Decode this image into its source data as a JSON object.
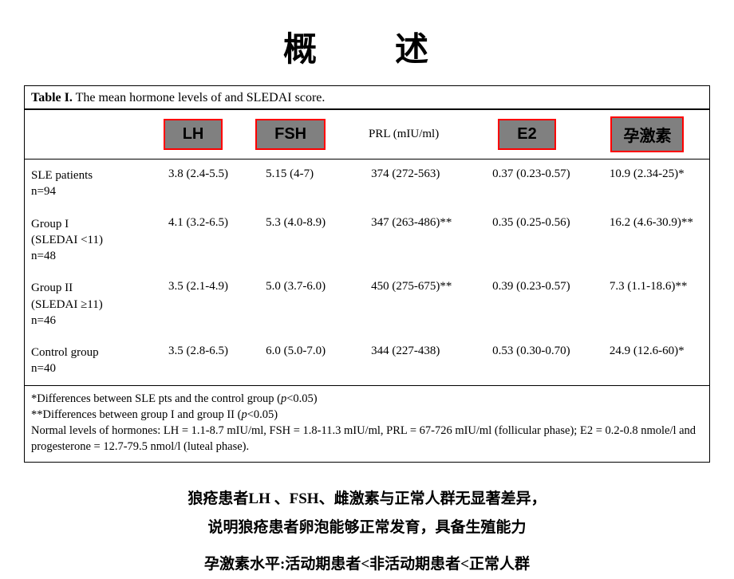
{
  "title": "概　述",
  "table": {
    "caption_prefix": "Table I.",
    "caption_text": " The mean hormone levels of and SLEDAI score.",
    "headers": {
      "lh": "LH",
      "fsh": "FSH",
      "prl": "PRL (mIU/ml)",
      "e2": "E2",
      "prog": "孕激素"
    },
    "rows": [
      {
        "label": "SLE patients\nn=94",
        "lh": "3.8  (2.4-5.5)",
        "fsh": "5.15  (4-7)",
        "prl": "374  (272-563)",
        "e2": "0.37  (0.23-0.57)",
        "prog": "10.9  (2.34-25)*"
      },
      {
        "label": "Group I\n(SLEDAI <11)\nn=48",
        "lh": "4.1  (3.2-6.5)",
        "fsh": "5.3  (4.0-8.9)",
        "prl": "347  (263-486)**",
        "e2": "0.35  (0.25-0.56)",
        "prog": "16.2  (4.6-30.9)**"
      },
      {
        "label": "Group II\n(SLEDAI ≥11)\nn=46",
        "lh": "3.5  (2.1-4.9)",
        "fsh": "5.0  (3.7-6.0)",
        "prl": "450  (275-675)**",
        "e2": "0.39  (0.23-0.57)",
        "prog": "7.3  (1.1-18.6)**"
      },
      {
        "label": "Control group\nn=40",
        "lh": "3.5  (2.8-6.5)",
        "fsh": "6.0  (5.0-7.0)",
        "prl": "344  (227-438)",
        "e2": "0.53  (0.30-0.70)",
        "prog": "24.9  (12.6-60)*"
      }
    ],
    "footnotes": {
      "f1_pre": "*Differences between SLE pts and the control group (",
      "f1_p": "p",
      "f1_post": "<0.05)",
      "f2_pre": "**Differences between group I and group II (",
      "f2_p": "p",
      "f2_post": "<0.05)",
      "f3": "Normal levels of hormones: LH = 1.1-8.7 mIU/ml, FSH = 1.8-11.3 mIU/ml, PRL = 67-726 mIU/ml (follicular phase); E2 = 0.2-0.8 nmole/l and progesterone = 12.7-79.5 nmol/l (luteal phase)."
    }
  },
  "bottom": {
    "line1": "狼疮患者LH 、FSH、雌激素与正常人群无显著差异，",
    "line2": "说明狼疮患者卵泡能够正常发育，具备生殖能力",
    "line3": "孕激素水平:活动期患者<非活动期患者<正常人群"
  },
  "colors": {
    "box_bg": "#808080",
    "box_border": "#ff0000",
    "text": "#000000",
    "bg": "#ffffff"
  }
}
